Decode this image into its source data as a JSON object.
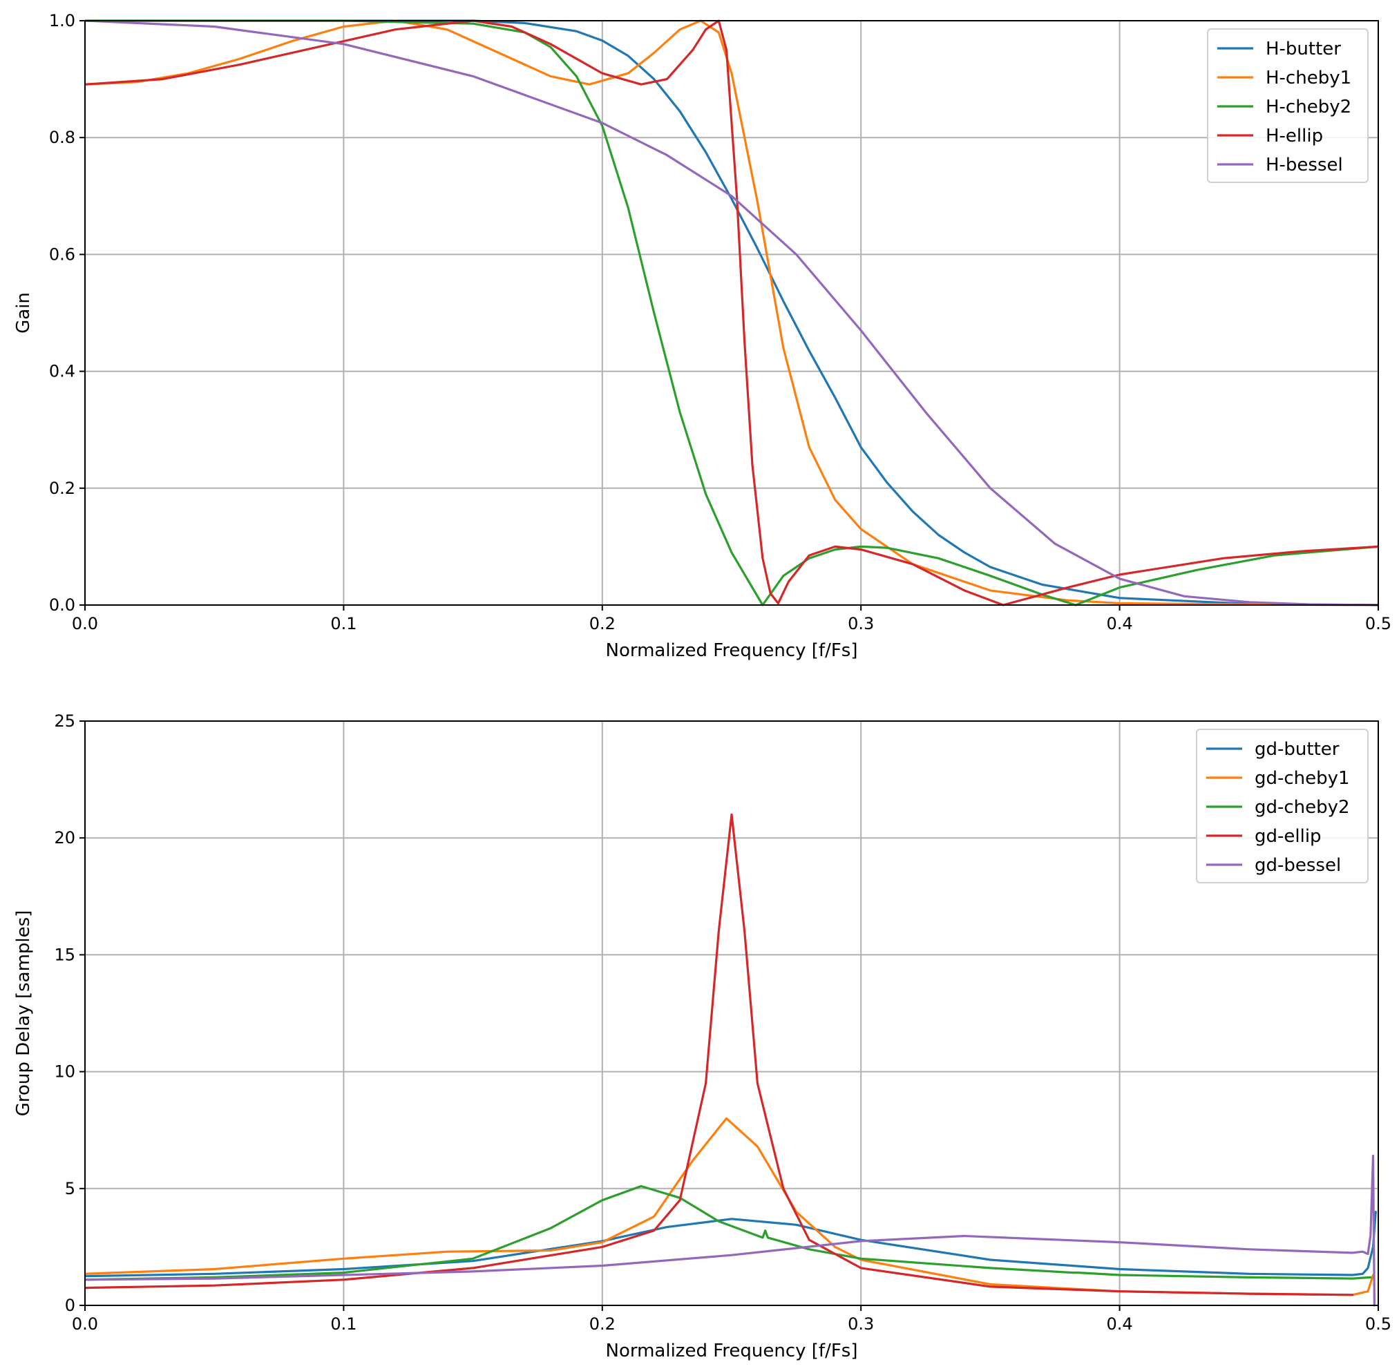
{
  "colors": {
    "butter": "#1f77b4",
    "cheby1": "#ff7f0e",
    "cheby2": "#2ca02c",
    "ellip": "#d62728",
    "bessel": "#9467bd"
  },
  "chart_data": [
    {
      "type": "line",
      "title": "",
      "xlabel": "Normalized Frequency [f/Fs]",
      "ylabel": "Gain",
      "xlim": [
        0,
        0.5
      ],
      "ylim": [
        0,
        1.0
      ],
      "x_ticks": [
        "0.0",
        "0.1",
        "0.2",
        "0.3",
        "0.4",
        "0.5"
      ],
      "y_ticks": [
        "0.0",
        "0.2",
        "0.4",
        "0.6",
        "0.8",
        "1.0"
      ],
      "grid": true,
      "legend_position": "top-right",
      "series": [
        {
          "name": "H-butter",
          "color": "#1f77b4",
          "x": [
            0,
            0.05,
            0.1,
            0.15,
            0.17,
            0.19,
            0.2,
            0.21,
            0.22,
            0.23,
            0.24,
            0.25,
            0.26,
            0.27,
            0.28,
            0.29,
            0.3,
            0.31,
            0.32,
            0.33,
            0.34,
            0.35,
            0.37,
            0.4,
            0.45,
            0.5
          ],
          "y": [
            1.0,
            1.0,
            1.0,
            1.0,
            0.996,
            0.982,
            0.966,
            0.94,
            0.9,
            0.845,
            0.775,
            0.695,
            0.61,
            0.52,
            0.435,
            0.355,
            0.27,
            0.21,
            0.16,
            0.12,
            0.09,
            0.065,
            0.035,
            0.012,
            0.002,
            0.0
          ]
        },
        {
          "name": "H-cheby1",
          "color": "#ff7f0e",
          "x": [
            0,
            0.02,
            0.04,
            0.06,
            0.08,
            0.1,
            0.12,
            0.14,
            0.16,
            0.18,
            0.195,
            0.21,
            0.22,
            0.23,
            0.238,
            0.245,
            0.25,
            0.26,
            0.27,
            0.28,
            0.29,
            0.3,
            0.32,
            0.35,
            0.38,
            0.4,
            0.45,
            0.5
          ],
          "y": [
            0.891,
            0.895,
            0.91,
            0.935,
            0.965,
            0.99,
            1.0,
            0.985,
            0.945,
            0.905,
            0.891,
            0.91,
            0.945,
            0.985,
            1.0,
            0.98,
            0.91,
            0.69,
            0.44,
            0.27,
            0.18,
            0.13,
            0.07,
            0.025,
            0.008,
            0.003,
            0.001,
            0.0
          ]
        },
        {
          "name": "H-cheby2",
          "color": "#2ca02c",
          "x": [
            0,
            0.1,
            0.15,
            0.17,
            0.18,
            0.19,
            0.2,
            0.21,
            0.22,
            0.23,
            0.24,
            0.25,
            0.262,
            0.27,
            0.28,
            0.29,
            0.3,
            0.31,
            0.33,
            0.35,
            0.37,
            0.383,
            0.4,
            0.43,
            0.46,
            0.5
          ],
          "y": [
            1.0,
            1.0,
            0.995,
            0.98,
            0.955,
            0.905,
            0.82,
            0.68,
            0.5,
            0.33,
            0.19,
            0.09,
            0.0,
            0.05,
            0.08,
            0.095,
            0.1,
            0.098,
            0.08,
            0.05,
            0.018,
            0.0,
            0.03,
            0.06,
            0.085,
            0.1
          ]
        },
        {
          "name": "H-ellip",
          "color": "#d62728",
          "x": [
            0,
            0.03,
            0.06,
            0.09,
            0.12,
            0.15,
            0.165,
            0.18,
            0.2,
            0.215,
            0.225,
            0.235,
            0.24,
            0.245,
            0.248,
            0.252,
            0.255,
            0.258,
            0.262,
            0.265,
            0.268,
            0.272,
            0.28,
            0.29,
            0.3,
            0.32,
            0.34,
            0.355,
            0.38,
            0.4,
            0.44,
            0.47,
            0.5
          ],
          "y": [
            0.891,
            0.9,
            0.925,
            0.955,
            0.985,
            1.0,
            0.99,
            0.96,
            0.91,
            0.891,
            0.9,
            0.95,
            0.985,
            1.0,
            0.95,
            0.7,
            0.45,
            0.24,
            0.08,
            0.02,
            0.003,
            0.04,
            0.085,
            0.1,
            0.095,
            0.07,
            0.025,
            0.0,
            0.03,
            0.052,
            0.08,
            0.092,
            0.1
          ]
        },
        {
          "name": "H-bessel",
          "color": "#9467bd",
          "x": [
            0,
            0.05,
            0.1,
            0.15,
            0.2,
            0.225,
            0.25,
            0.275,
            0.3,
            0.325,
            0.35,
            0.375,
            0.4,
            0.425,
            0.45,
            0.475,
            0.5
          ],
          "y": [
            1.0,
            0.99,
            0.96,
            0.905,
            0.825,
            0.77,
            0.7,
            0.6,
            0.47,
            0.33,
            0.2,
            0.105,
            0.045,
            0.015,
            0.005,
            0.001,
            0.0
          ]
        }
      ]
    },
    {
      "type": "line",
      "title": "",
      "xlabel": "Normalized Frequency [f/Fs]",
      "ylabel": "Group Delay [samples]",
      "xlim": [
        0,
        0.5
      ],
      "ylim": [
        0,
        25
      ],
      "x_ticks": [
        "0.0",
        "0.1",
        "0.2",
        "0.3",
        "0.4",
        "0.5"
      ],
      "y_ticks": [
        "0",
        "5",
        "10",
        "15",
        "20",
        "25"
      ],
      "grid": true,
      "legend_position": "top-right",
      "series": [
        {
          "name": "gd-butter",
          "color": "#1f77b4",
          "x": [
            0,
            0.05,
            0.1,
            0.15,
            0.2,
            0.225,
            0.25,
            0.275,
            0.3,
            0.35,
            0.4,
            0.45,
            0.49,
            0.494,
            0.496,
            0.498,
            0.499
          ],
          "y": [
            1.25,
            1.35,
            1.55,
            1.9,
            2.75,
            3.35,
            3.7,
            3.45,
            2.8,
            1.95,
            1.55,
            1.35,
            1.3,
            1.35,
            1.6,
            2.5,
            4.0
          ]
        },
        {
          "name": "gd-cheby1",
          "color": "#ff7f0e",
          "x": [
            0,
            0.05,
            0.1,
            0.14,
            0.18,
            0.2,
            0.22,
            0.235,
            0.248,
            0.26,
            0.275,
            0.29,
            0.3,
            0.35,
            0.4,
            0.45,
            0.49,
            0.496,
            0.498
          ],
          "y": [
            1.35,
            1.55,
            2.0,
            2.3,
            2.35,
            2.7,
            3.8,
            6.2,
            8.0,
            6.8,
            4.0,
            2.5,
            1.95,
            0.9,
            0.6,
            0.5,
            0.45,
            0.6,
            1.3
          ]
        },
        {
          "name": "gd-cheby2",
          "color": "#2ca02c",
          "x": [
            0,
            0.05,
            0.1,
            0.15,
            0.18,
            0.2,
            0.215,
            0.23,
            0.245,
            0.262,
            0.263,
            0.264,
            0.28,
            0.3,
            0.35,
            0.382,
            0.384,
            0.4,
            0.45,
            0.49,
            0.497
          ],
          "y": [
            1.1,
            1.2,
            1.4,
            2.0,
            3.3,
            4.5,
            5.1,
            4.6,
            3.6,
            2.9,
            3.2,
            2.9,
            2.4,
            2.0,
            1.6,
            1.4,
            1.4,
            1.3,
            1.2,
            1.15,
            1.2
          ]
        },
        {
          "name": "gd-ellip",
          "color": "#d62728",
          "x": [
            0,
            0.05,
            0.1,
            0.15,
            0.2,
            0.22,
            0.23,
            0.24,
            0.245,
            0.25,
            0.255,
            0.26,
            0.27,
            0.28,
            0.3,
            0.35,
            0.4,
            0.45,
            0.49
          ],
          "y": [
            0.75,
            0.85,
            1.1,
            1.6,
            2.5,
            3.2,
            4.5,
            9.5,
            16.0,
            21.0,
            16.0,
            9.5,
            5.0,
            2.8,
            1.6,
            0.8,
            0.6,
            0.5,
            0.45
          ]
        },
        {
          "name": "gd-bessel",
          "color": "#9467bd",
          "x": [
            0,
            0.05,
            0.1,
            0.15,
            0.2,
            0.25,
            0.3,
            0.34,
            0.4,
            0.45,
            0.49,
            0.494,
            0.496,
            0.497,
            0.498,
            0.4985
          ],
          "y": [
            1.1,
            1.15,
            1.3,
            1.45,
            1.7,
            2.15,
            2.75,
            2.97,
            2.7,
            2.4,
            2.25,
            2.3,
            2.2,
            3.0,
            6.4,
            0.0
          ]
        }
      ]
    }
  ]
}
